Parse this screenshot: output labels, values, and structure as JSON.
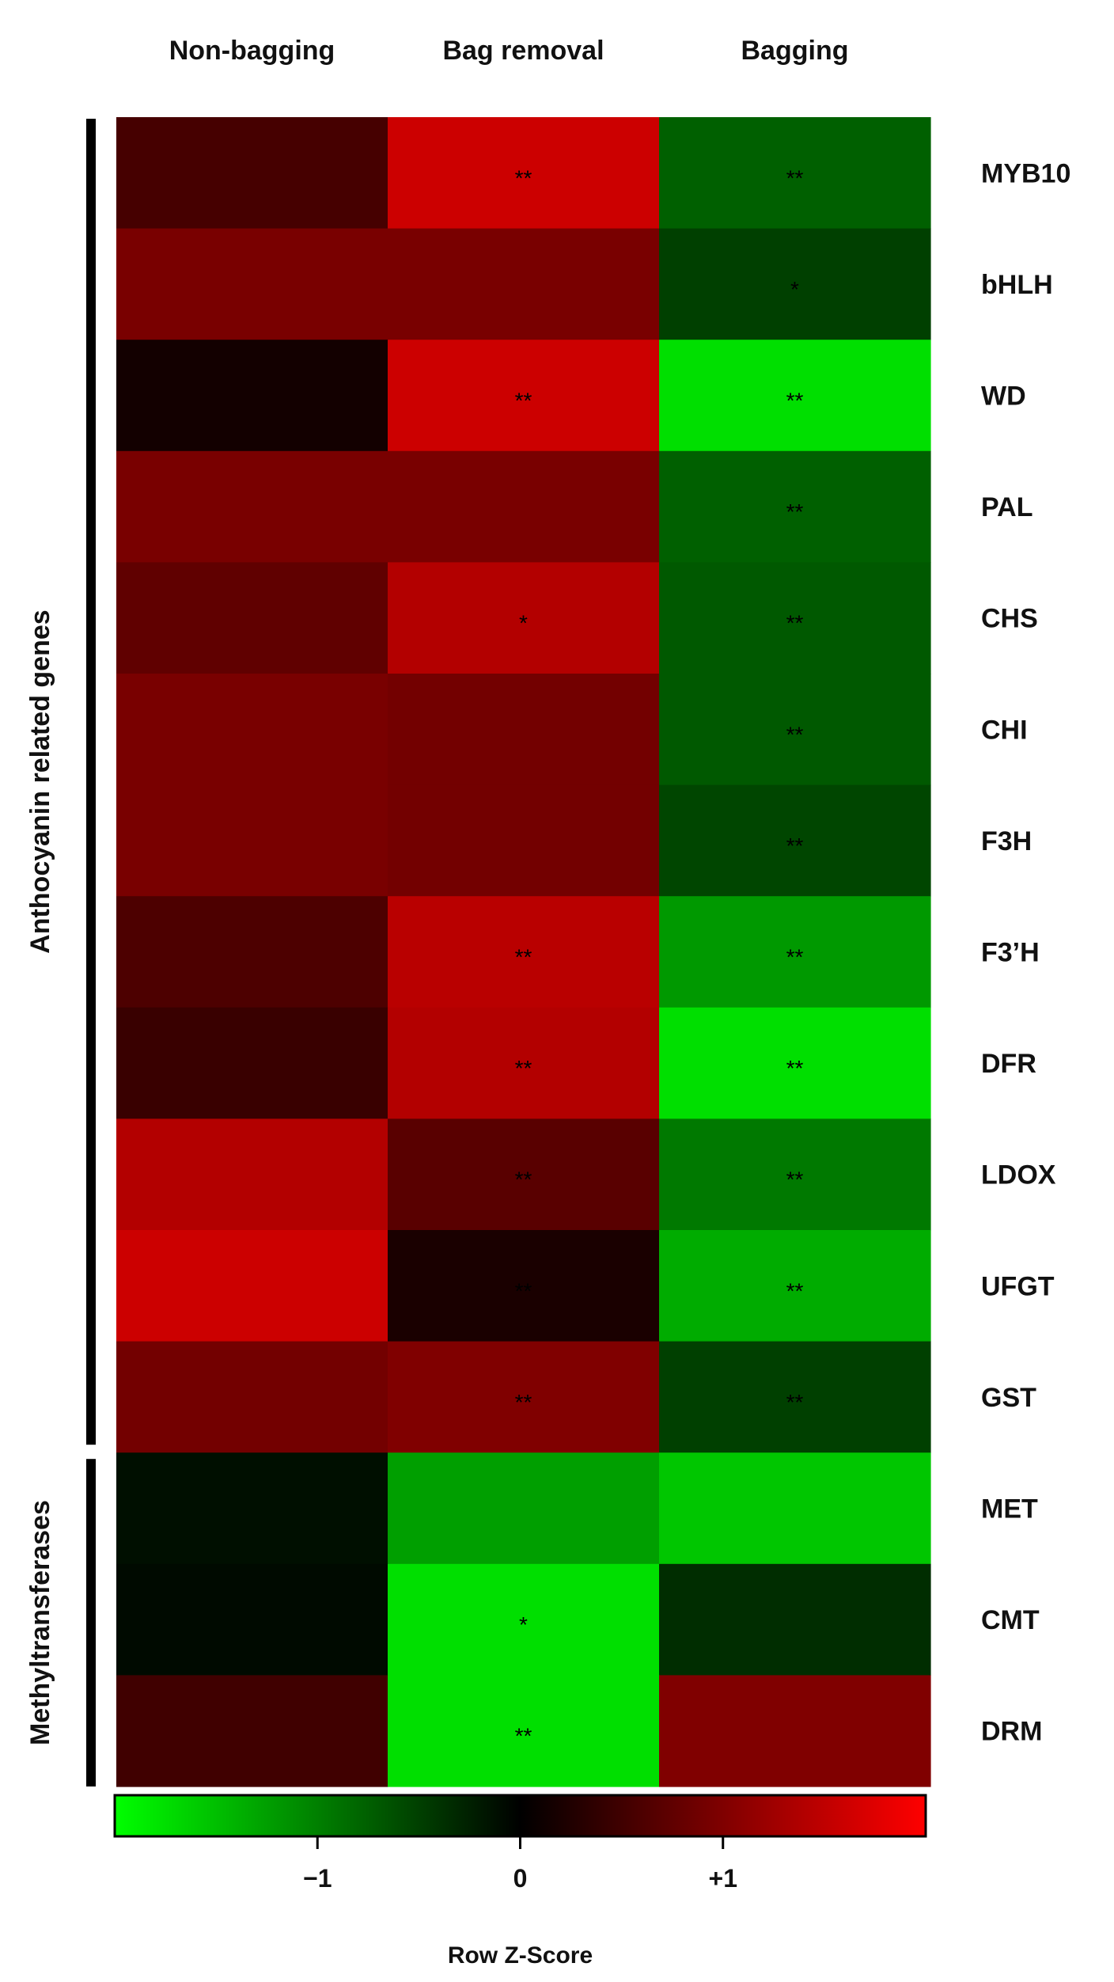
{
  "chart_data": {
    "type": "heatmap",
    "columns": [
      "Non-bagging",
      "Bag removal",
      "Bagging"
    ],
    "rows": [
      "MYB10",
      "bHLH",
      "WD",
      "PAL",
      "CHS",
      "CHI",
      "F3H",
      "F3’H",
      "DFR",
      "LDOX",
      "UFGT",
      "GST",
      "MET",
      "CMT",
      "DRM"
    ],
    "values": [
      [
        0.55,
        1.6,
        -0.75
      ],
      [
        0.95,
        0.95,
        -0.5
      ],
      [
        0.15,
        1.6,
        -1.75
      ],
      [
        0.95,
        0.95,
        -0.75
      ],
      [
        0.75,
        1.4,
        -0.7
      ],
      [
        0.95,
        0.9,
        -0.7
      ],
      [
        0.95,
        0.9,
        -0.55
      ],
      [
        0.6,
        1.45,
        -1.2
      ],
      [
        0.45,
        1.4,
        -1.75
      ],
      [
        1.4,
        0.7,
        -0.95
      ],
      [
        1.6,
        0.2,
        -1.35
      ],
      [
        0.9,
        1.0,
        -0.5
      ],
      [
        -0.12,
        -1.25,
        -1.55
      ],
      [
        -0.08,
        -1.75,
        -0.35
      ],
      [
        0.5,
        -1.75,
        1.0
      ]
    ],
    "significance": [
      [
        "",
        "**",
        "**"
      ],
      [
        "",
        "",
        "*"
      ],
      [
        "",
        "**",
        "**"
      ],
      [
        "",
        "",
        "**"
      ],
      [
        "",
        "*",
        "**"
      ],
      [
        "",
        "",
        "**"
      ],
      [
        "",
        "",
        "**"
      ],
      [
        "",
        "**",
        "**"
      ],
      [
        "",
        "**",
        "**"
      ],
      [
        "",
        "**",
        "**"
      ],
      [
        "",
        "**",
        "**"
      ],
      [
        "",
        "**",
        "**"
      ],
      [
        "",
        "",
        ""
      ],
      [
        "",
        "*",
        ""
      ],
      [
        "",
        "**",
        ""
      ]
    ],
    "groups": [
      {
        "label": "Anthocyanin related genes",
        "first_row": 0,
        "last_row": 11
      },
      {
        "label": "Methyltransferases",
        "first_row": 12,
        "last_row": 14
      }
    ],
    "color_scale": {
      "min": -2,
      "max": 2,
      "low_color": "#00ff00",
      "mid_color": "#000000",
      "high_color": "#ff0000",
      "ticks": [
        -1,
        0,
        1
      ],
      "tick_labels": [
        "−1",
        "0",
        "+1"
      ],
      "label": "Row Z-Score"
    }
  }
}
